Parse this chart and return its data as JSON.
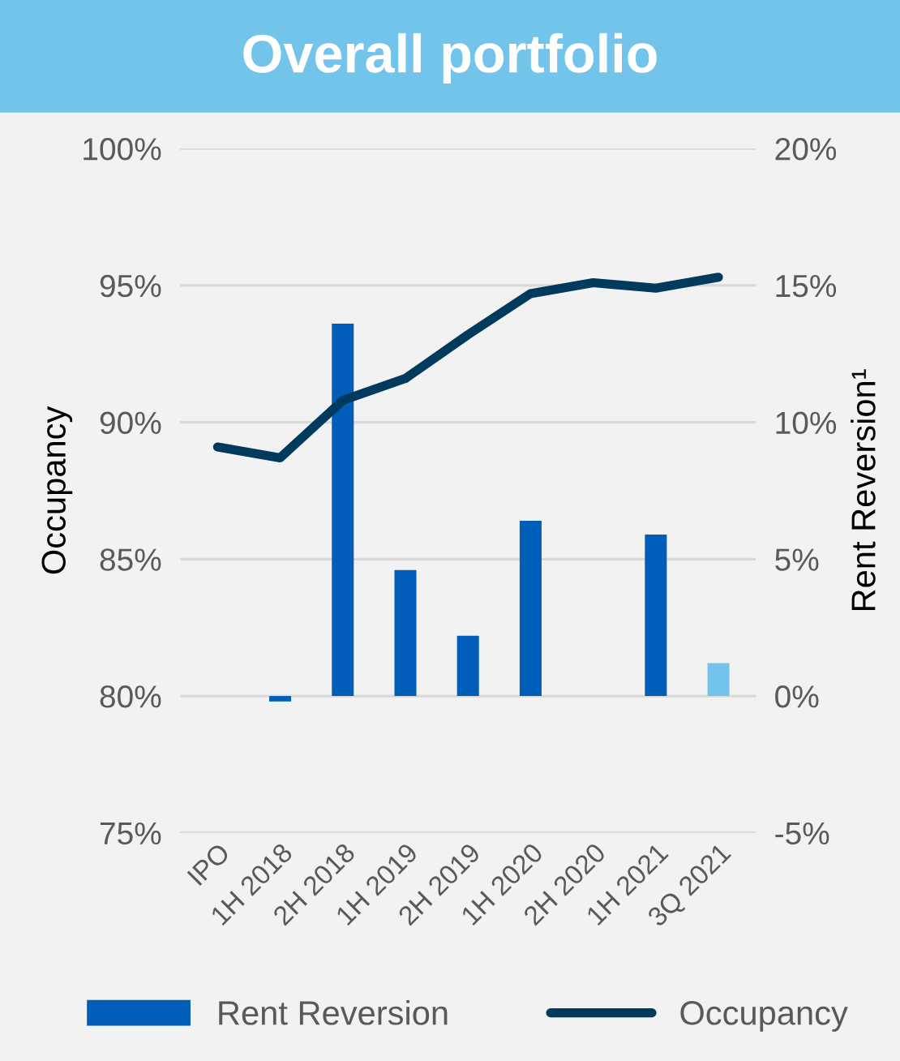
{
  "chart_data": {
    "type": "bar",
    "title": "Overall portfolio",
    "categories": [
      "IPO",
      "1H 2018",
      "2H 2018",
      "1H 2019",
      "2H 2019",
      "1H 2020",
      "2H 2020",
      "1H 2021",
      "3Q 2021"
    ],
    "series": [
      {
        "name": "Rent Reversion",
        "axis": "y2",
        "color": "#005eb8",
        "colors": [
          "#005eb8",
          "#005eb8",
          "#005eb8",
          "#005eb8",
          "#005eb8",
          "#005eb8",
          "#005eb8",
          "#005eb8",
          "#73c4ea"
        ],
        "values": [
          null,
          -0.2,
          13.6,
          4.6,
          2.2,
          6.4,
          null,
          5.9,
          1.2
        ]
      },
      {
        "name": "Occupancy",
        "type": "line",
        "color": "#003a5d",
        "values": [
          89.1,
          88.7,
          90.8,
          91.6,
          93.2,
          94.7,
          95.1,
          94.9,
          95.3
        ]
      }
    ],
    "ylabel": "Occupancy",
    "y2label": "Rent Reversion¹",
    "ylim": [
      75,
      100
    ],
    "yticks": [
      {
        "value": 75,
        "label": "75%"
      },
      {
        "value": 80,
        "label": "80%"
      },
      {
        "value": 85,
        "label": "85%"
      },
      {
        "value": 90,
        "label": "90%"
      },
      {
        "value": 95,
        "label": "95%"
      },
      {
        "value": 100,
        "label": "100%"
      }
    ],
    "y2lim": [
      -5,
      20
    ],
    "y2ticks": [
      {
        "value": -5,
        "label": "-5%"
      },
      {
        "value": 0,
        "label": "0%"
      },
      {
        "value": 5,
        "label": "5%"
      },
      {
        "value": 10,
        "label": "10%"
      },
      {
        "value": 15,
        "label": "15%"
      },
      {
        "value": 20,
        "label": "20%"
      }
    ],
    "grid": "y",
    "legend": "bottom",
    "marker": "none",
    "line_style": "solid"
  }
}
